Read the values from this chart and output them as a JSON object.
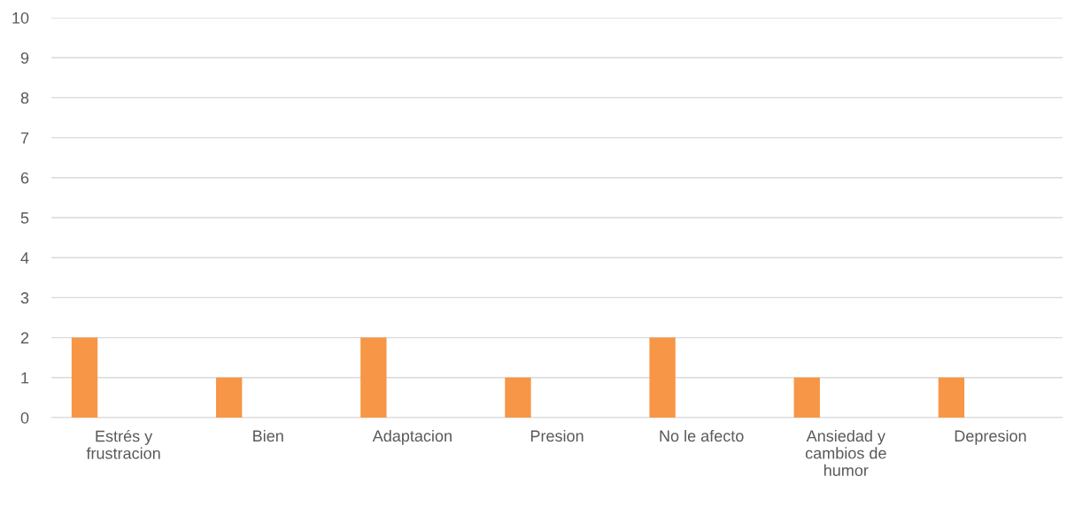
{
  "chart_data": {
    "type": "bar",
    "categories": [
      "Estrés y frustracion",
      "Bien",
      "Adaptacion",
      "Presion",
      "No le afecto",
      "Ansiedad y cambios de humor",
      "Depresion"
    ],
    "values": [
      2,
      1,
      2,
      1,
      2,
      1,
      1
    ],
    "color": "#f79646",
    "ylim": [
      0,
      10
    ],
    "yticks": [
      0,
      1,
      2,
      3,
      4,
      5,
      6,
      7,
      8,
      9,
      10
    ],
    "grid": "y",
    "legend": false
  }
}
